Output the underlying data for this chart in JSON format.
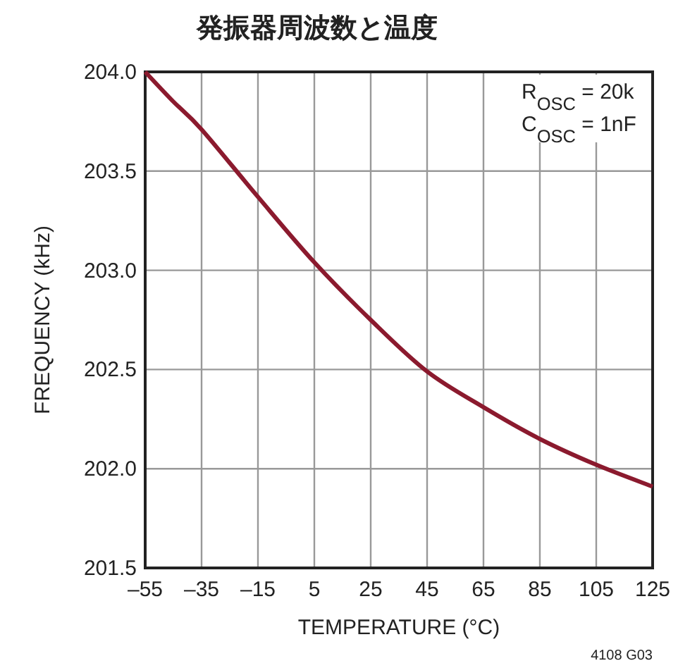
{
  "chart_data": {
    "type": "line",
    "title": "発振器周波数と温度",
    "xlabel": "TEMPERATURE (°C)",
    "ylabel": "FREQUENCY (kHz)",
    "x": [
      -55,
      -45,
      -35,
      -15,
      5,
      25,
      45,
      65,
      85,
      105,
      125
    ],
    "series": [
      {
        "color": "#8b1a2e",
        "values": [
          204.0,
          203.85,
          203.71,
          203.37,
          203.04,
          202.75,
          202.49,
          202.31,
          202.15,
          202.02,
          201.91
        ]
      }
    ],
    "xlim": [
      -55,
      125
    ],
    "ylim": [
      201.5,
      204.0
    ],
    "xticks": [
      {
        "value": -55,
        "label": "–55"
      },
      {
        "value": -35,
        "label": "–35"
      },
      {
        "value": -15,
        "label": "–15"
      },
      5,
      25,
      45,
      65,
      85,
      105,
      125
    ],
    "yticks": [
      {
        "value": 201.5,
        "label": "201.5"
      },
      {
        "value": 202,
        "label": "202.0"
      },
      {
        "value": 202.5,
        "label": "202.5"
      },
      {
        "value": 203,
        "label": "203.0"
      },
      {
        "value": 203.5,
        "label": "203.5"
      },
      {
        "value": 204,
        "label": "204.0"
      }
    ],
    "grid": true,
    "marker": "none",
    "line_style": "solid",
    "annotations": [
      "R$_{OSC}$ = 20k",
      "C$_{OSC}$ = 1nF",
      "4108 G03"
    ]
  }
}
